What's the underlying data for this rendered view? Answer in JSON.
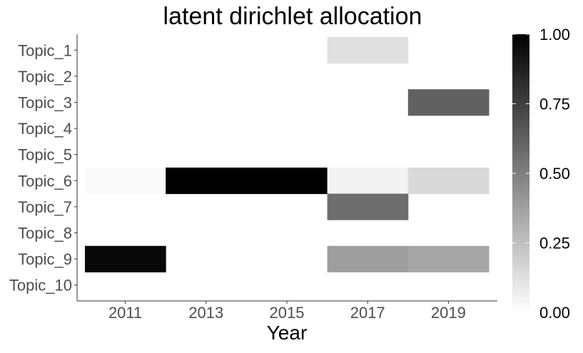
{
  "chart_data": {
    "type": "heatmap",
    "title": "latent dirichlet allocation",
    "xlabel": "Year",
    "ylabel": "",
    "x_ticks": [
      "2011",
      "2013",
      "2015",
      "2017",
      "2019"
    ],
    "y_categories": [
      "Topic_1",
      "Topic_2",
      "Topic_3",
      "Topic_4",
      "Topic_5",
      "Topic_6",
      "Topic_7",
      "Topic_8",
      "Topic_9",
      "Topic_10"
    ],
    "x_range": [
      2010,
      2020
    ],
    "cell_width_years": 2,
    "cells": [
      {
        "topic": "Topic_1",
        "year": 2017,
        "value": 0.12
      },
      {
        "topic": "Topic_3",
        "year": 2019,
        "value": 0.62
      },
      {
        "topic": "Topic_6",
        "year": 2011,
        "value": 0.02
      },
      {
        "topic": "Topic_6",
        "year": 2013,
        "value": 1.0
      },
      {
        "topic": "Topic_6",
        "year": 2015,
        "value": 1.0
      },
      {
        "topic": "Topic_6",
        "year": 2017,
        "value": 0.05
      },
      {
        "topic": "Topic_6",
        "year": 2019,
        "value": 0.15
      },
      {
        "topic": "Topic_7",
        "year": 2017,
        "value": 0.57
      },
      {
        "topic": "Topic_9",
        "year": 2011,
        "value": 0.97
      },
      {
        "topic": "Topic_9",
        "year": 2017,
        "value": 0.38
      },
      {
        "topic": "Topic_9",
        "year": 2019,
        "value": 0.35
      }
    ],
    "color_scale": {
      "low": "#ffffff",
      "high": "#000000",
      "range": [
        0,
        1
      ],
      "ticks": [
        "0.00",
        "0.25",
        "0.50",
        "0.75",
        "1.00"
      ]
    },
    "legend_position": "right",
    "grid": false
  }
}
